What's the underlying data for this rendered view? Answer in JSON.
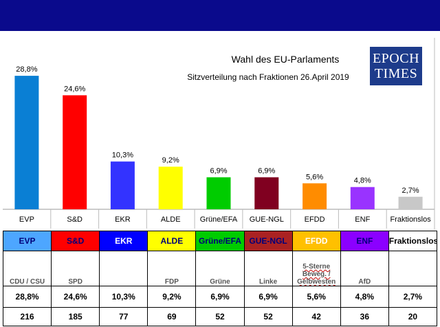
{
  "header": {
    "title": "Wahl des EU-Parlaments",
    "subtitle": "Sitzverteilung nach Fraktionen 26.April 2019",
    "logo_line1": "EPOCH",
    "logo_line2": "TIMES"
  },
  "chart_data": {
    "type": "bar",
    "title": "Wahl des EU-Parlaments",
    "subtitle": "Sitzverteilung nach Fraktionen 26.April 2019",
    "categories": [
      "EVP",
      "S&D",
      "EKR",
      "ALDE",
      "Grüne/EFA",
      "GUE-NGL",
      "EFDD",
      "ENF",
      "Fraktionslos"
    ],
    "values": [
      28.8,
      24.6,
      10.3,
      9.2,
      6.9,
      6.9,
      5.6,
      4.8,
      2.7
    ],
    "labels": [
      "28,8%",
      "24,6%",
      "10,3%",
      "9,2%",
      "6,9%",
      "6,9%",
      "5,6%",
      "4,8%",
      "2,7%"
    ],
    "colors": [
      "#0a7fd4",
      "#ff0000",
      "#3333ff",
      "#ffff00",
      "#00cc00",
      "#800020",
      "#ff8c00",
      "#9933ff",
      "#c8c8c8"
    ],
    "xlabel": "",
    "ylabel": "",
    "ylim": [
      0,
      30
    ],
    "grid": false,
    "legend": "none"
  },
  "table": {
    "headers": [
      {
        "label": "EVP",
        "bg": "#4da6ff",
        "color": "#00007a"
      },
      {
        "label": "S&D",
        "bg": "#ff0000",
        "color": "#00007a"
      },
      {
        "label": "EKR",
        "bg": "#0000ff",
        "color": "#ffffff"
      },
      {
        "label": "ALDE",
        "bg": "#ffff00",
        "color": "#00007a"
      },
      {
        "label": "Grüne/EFA",
        "bg": "#00cc00",
        "color": "#00007a"
      },
      {
        "label": "GUE-NGL",
        "bg": "#aa2222",
        "color": "#00007a"
      },
      {
        "label": "EFDD",
        "bg": "#ffc000",
        "color": "#ffffff"
      },
      {
        "label": "ENF",
        "bg": "#8b00ff",
        "color": "#00007a"
      },
      {
        "label": "Fraktionslos",
        "bg": "#ffffff",
        "color": "#000000"
      }
    ],
    "parties": [
      "CDU / CSU",
      "SPD",
      "",
      "FDP",
      "Grüne",
      "Linke",
      "5-Sterne Beweg. / Gelbwesten",
      "AfD",
      ""
    ],
    "percentages": [
      "28,8%",
      "24,6%",
      "10,3%",
      "9,2%",
      "6,9%",
      "6,9%",
      "5,6%",
      "4,8%",
      "2,7%"
    ],
    "seats": [
      "216",
      "185",
      "77",
      "69",
      "52",
      "52",
      "42",
      "36",
      "20"
    ]
  }
}
